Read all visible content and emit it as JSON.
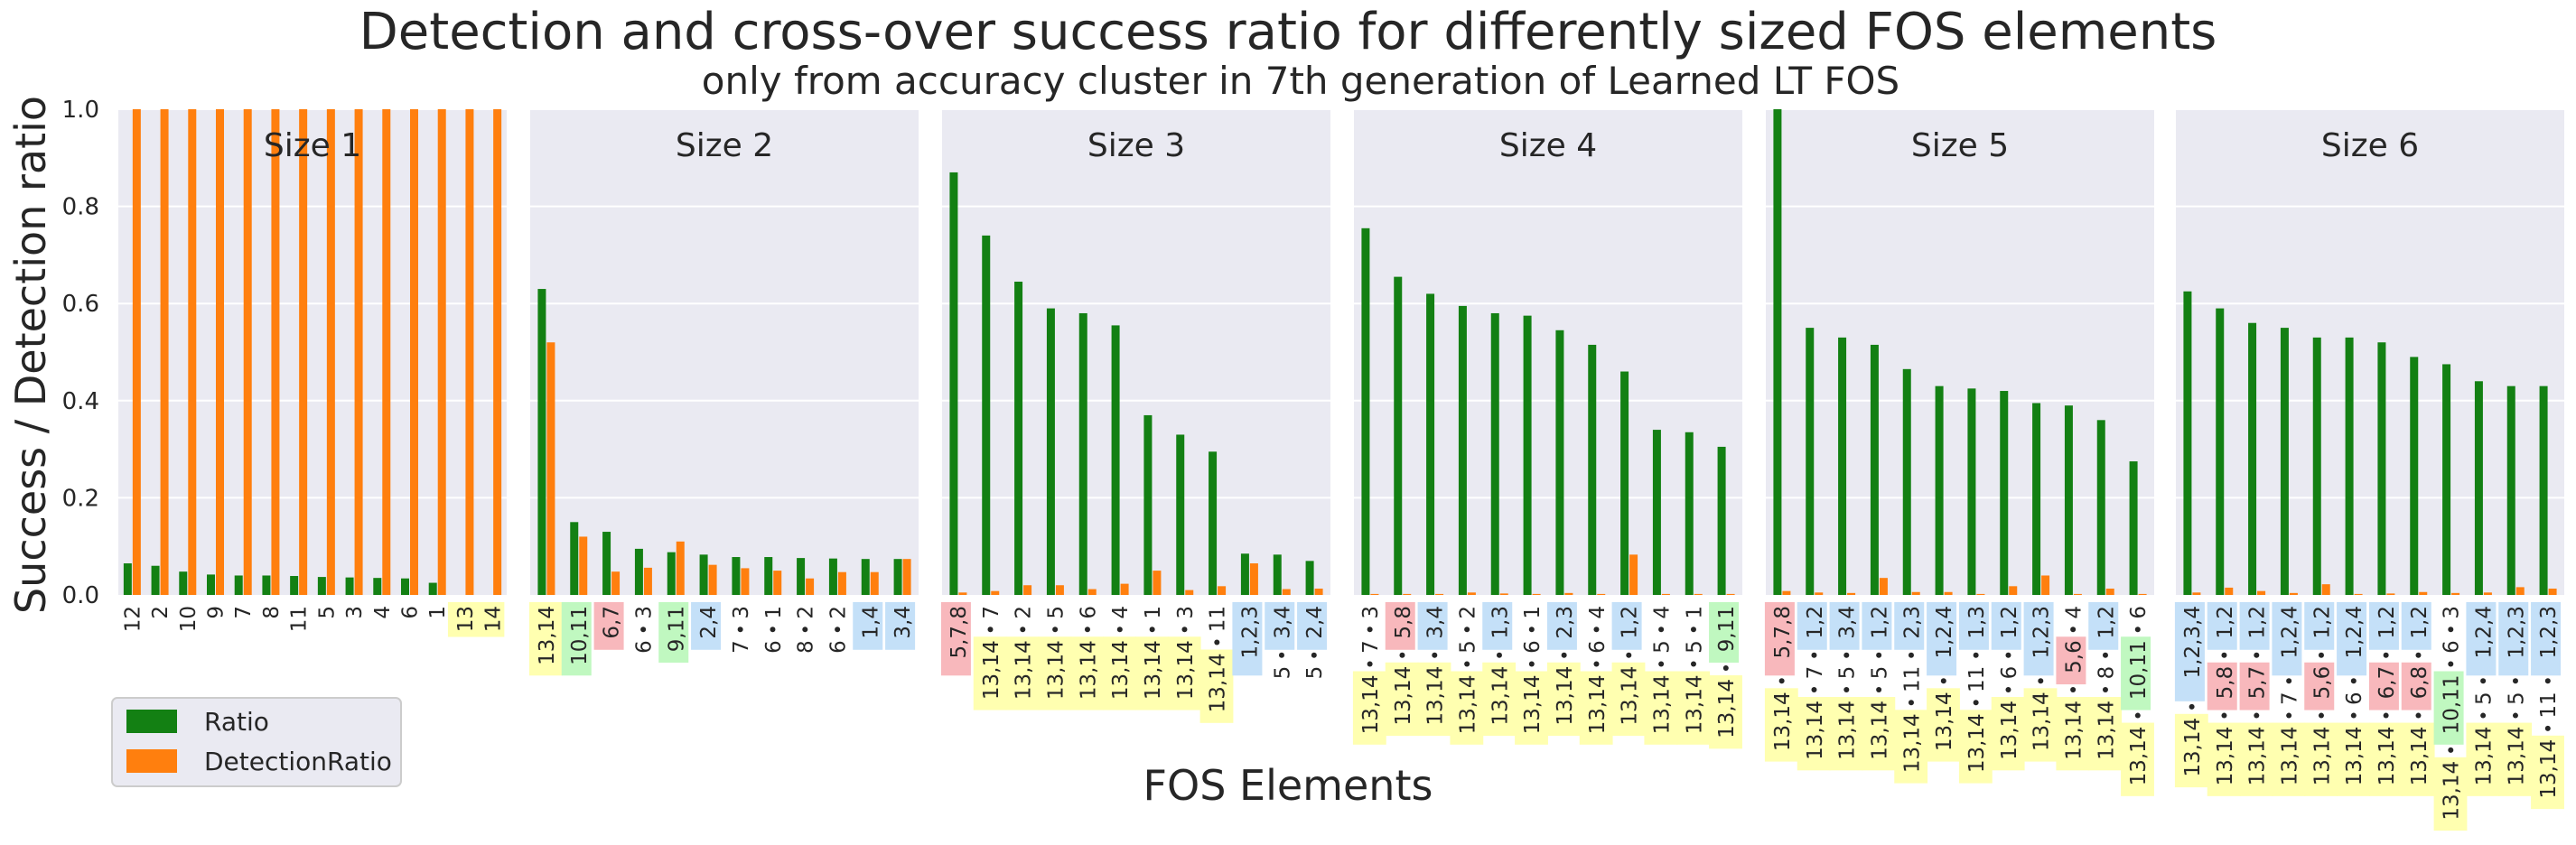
{
  "title": "Detection and cross-over success ratio for differently sized FOS elements",
  "subtitle": "only from accuracy cluster in 7th generation of Learned LT FOS",
  "ylabel": "Success / Detection ratio",
  "xlabel": "FOS Elements",
  "legend": [
    {
      "name": "Ratio",
      "color": "#138013"
    },
    {
      "name": "DetectionRatio",
      "color": "#ff7f0e"
    }
  ],
  "colors": {
    "ratio": "#138013",
    "detection": "#ff7f0e",
    "panel_bg": "#eaeaf2",
    "grid": "#ffffff",
    "hl_yellow": "#ffffb0",
    "hl_green": "#c0f8c0",
    "hl_red": "#f8b8bc",
    "hl_blue": "#c4e0f8"
  },
  "chart_data": {
    "type": "bar",
    "ylim": [
      0,
      1.0
    ],
    "yticks": [
      "0.0",
      "0.2",
      "0.4",
      "0.6",
      "0.8",
      "1.0"
    ],
    "ytick_values": [
      0,
      0.2,
      0.4,
      0.6,
      0.8,
      1.0
    ],
    "grid": true,
    "legend_position": "lower-left",
    "series_names": [
      "Ratio",
      "DetectionRatio"
    ],
    "panels": [
      {
        "title": "Size 1",
        "categories": [
          [
            {
              "t": "12"
            }
          ],
          [
            {
              "t": "2"
            }
          ],
          [
            {
              "t": "10"
            }
          ],
          [
            {
              "t": "9"
            }
          ],
          [
            {
              "t": "7"
            }
          ],
          [
            {
              "t": "8"
            }
          ],
          [
            {
              "t": "11"
            }
          ],
          [
            {
              "t": "5"
            }
          ],
          [
            {
              "t": "3"
            }
          ],
          [
            {
              "t": "4"
            }
          ],
          [
            {
              "t": "6"
            }
          ],
          [
            {
              "t": "1"
            }
          ],
          [
            {
              "t": "13",
              "h": "yellow"
            }
          ],
          [
            {
              "t": "14",
              "h": "yellow"
            }
          ]
        ],
        "ratio": [
          0.065,
          0.06,
          0.048,
          0.042,
          0.04,
          0.04,
          0.039,
          0.037,
          0.036,
          0.035,
          0.034,
          0.025,
          0.0,
          0.0
        ],
        "detection": [
          1.0,
          1.0,
          1.0,
          1.0,
          1.0,
          1.0,
          1.0,
          1.0,
          1.0,
          1.0,
          1.0,
          1.0,
          1.0,
          1.0
        ]
      },
      {
        "title": "Size 2",
        "categories": [
          [
            {
              "t": "13,14",
              "h": "yellow"
            }
          ],
          [
            {
              "t": "10,11",
              "h": "green"
            }
          ],
          [
            {
              "t": "6,7",
              "h": "red"
            }
          ],
          [
            {
              "t": "3"
            },
            {
              "t": "6"
            }
          ],
          [
            {
              "t": "9,11",
              "h": "green"
            }
          ],
          [
            {
              "t": "2,4",
              "h": "blue"
            }
          ],
          [
            {
              "t": "3"
            },
            {
              "t": "7"
            }
          ],
          [
            {
              "t": "1"
            },
            {
              "t": "6"
            }
          ],
          [
            {
              "t": "2"
            },
            {
              "t": "8"
            }
          ],
          [
            {
              "t": "2"
            },
            {
              "t": "6"
            }
          ],
          [
            {
              "t": "1,4",
              "h": "blue"
            }
          ],
          [
            {
              "t": "3,4",
              "h": "blue"
            }
          ]
        ],
        "ratio": [
          0.63,
          0.15,
          0.13,
          0.095,
          0.088,
          0.083,
          0.078,
          0.078,
          0.076,
          0.075,
          0.074,
          0.074
        ],
        "detection": [
          0.52,
          0.12,
          0.048,
          0.056,
          0.11,
          0.062,
          0.055,
          0.05,
          0.034,
          0.047,
          0.047,
          0.074
        ]
      },
      {
        "title": "Size 3",
        "categories": [
          [
            {
              "t": "5,7,8",
              "h": "red"
            }
          ],
          [
            {
              "t": "7"
            },
            {
              "t": "13,14",
              "h": "yellow"
            }
          ],
          [
            {
              "t": "2"
            },
            {
              "t": "13,14",
              "h": "yellow"
            }
          ],
          [
            {
              "t": "5"
            },
            {
              "t": "13,14",
              "h": "yellow"
            }
          ],
          [
            {
              "t": "6"
            },
            {
              "t": "13,14",
              "h": "yellow"
            }
          ],
          [
            {
              "t": "4"
            },
            {
              "t": "13,14",
              "h": "yellow"
            }
          ],
          [
            {
              "t": "1"
            },
            {
              "t": "13,14",
              "h": "yellow"
            }
          ],
          [
            {
              "t": "3"
            },
            {
              "t": "13,14",
              "h": "yellow"
            }
          ],
          [
            {
              "t": "11"
            },
            {
              "t": "13,14",
              "h": "yellow"
            }
          ],
          [
            {
              "t": "1,2,3",
              "h": "blue"
            }
          ],
          [
            {
              "t": "3,4",
              "h": "blue"
            },
            {
              "t": "5"
            }
          ],
          [
            {
              "t": "2,4",
              "h": "blue"
            },
            {
              "t": "5"
            }
          ]
        ],
        "ratio": [
          0.87,
          0.74,
          0.645,
          0.59,
          0.58,
          0.555,
          0.37,
          0.33,
          0.295,
          0.085,
          0.083,
          0.07
        ],
        "detection": [
          0.005,
          0.008,
          0.02,
          0.02,
          0.012,
          0.023,
          0.05,
          0.01,
          0.018,
          0.065,
          0.012,
          0.013
        ]
      },
      {
        "title": "Size 4",
        "categories": [
          [
            {
              "t": "3"
            },
            {
              "t": "7"
            },
            {
              "t": "13,14",
              "h": "yellow"
            }
          ],
          [
            {
              "t": "5,8",
              "h": "red"
            },
            {
              "t": "13,14",
              "h": "yellow"
            }
          ],
          [
            {
              "t": "3,4",
              "h": "blue"
            },
            {
              "t": "13,14",
              "h": "yellow"
            }
          ],
          [
            {
              "t": "2"
            },
            {
              "t": "5"
            },
            {
              "t": "13,14",
              "h": "yellow"
            }
          ],
          [
            {
              "t": "1,3",
              "h": "blue"
            },
            {
              "t": "13,14",
              "h": "yellow"
            }
          ],
          [
            {
              "t": "1"
            },
            {
              "t": "6"
            },
            {
              "t": "13,14",
              "h": "yellow"
            }
          ],
          [
            {
              "t": "2,3",
              "h": "blue"
            },
            {
              "t": "13,14",
              "h": "yellow"
            }
          ],
          [
            {
              "t": "4"
            },
            {
              "t": "6"
            },
            {
              "t": "13,14",
              "h": "yellow"
            }
          ],
          [
            {
              "t": "1,2",
              "h": "blue"
            },
            {
              "t": "13,14",
              "h": "yellow"
            }
          ],
          [
            {
              "t": "4"
            },
            {
              "t": "5"
            },
            {
              "t": "13,14",
              "h": "yellow"
            }
          ],
          [
            {
              "t": "1"
            },
            {
              "t": "5"
            },
            {
              "t": "13,14",
              "h": "yellow"
            }
          ],
          [
            {
              "t": "9,11",
              "h": "green"
            },
            {
              "t": "13,14",
              "h": "yellow"
            }
          ]
        ],
        "ratio": [
          0.755,
          0.655,
          0.62,
          0.595,
          0.58,
          0.575,
          0.545,
          0.515,
          0.46,
          0.34,
          0.335,
          0.305
        ],
        "detection": [
          0.002,
          0.002,
          0.002,
          0.005,
          0.003,
          0.002,
          0.004,
          0.002,
          0.083,
          0.002,
          0.002,
          0.002
        ]
      },
      {
        "title": "Size 5",
        "categories": [
          [
            {
              "t": "5,7,8",
              "h": "red"
            },
            {
              "t": "13,14",
              "h": "yellow"
            }
          ],
          [
            {
              "t": "1,2",
              "h": "blue"
            },
            {
              "t": "7"
            },
            {
              "t": "13,14",
              "h": "yellow"
            }
          ],
          [
            {
              "t": "3,4",
              "h": "blue"
            },
            {
              "t": "5"
            },
            {
              "t": "13,14",
              "h": "yellow"
            }
          ],
          [
            {
              "t": "1,2",
              "h": "blue"
            },
            {
              "t": "5"
            },
            {
              "t": "13,14",
              "h": "yellow"
            }
          ],
          [
            {
              "t": "2,3",
              "h": "blue"
            },
            {
              "t": "11"
            },
            {
              "t": "13,14",
              "h": "yellow"
            }
          ],
          [
            {
              "t": "1,2,4",
              "h": "blue"
            },
            {
              "t": "13,14",
              "h": "yellow"
            }
          ],
          [
            {
              "t": "1,3",
              "h": "blue"
            },
            {
              "t": "11"
            },
            {
              "t": "13,14",
              "h": "yellow"
            }
          ],
          [
            {
              "t": "1,2",
              "h": "blue"
            },
            {
              "t": "6"
            },
            {
              "t": "13,14",
              "h": "yellow"
            }
          ],
          [
            {
              "t": "1,2,3",
              "h": "blue"
            },
            {
              "t": "13,14",
              "h": "yellow"
            }
          ],
          [
            {
              "t": "4"
            },
            {
              "t": "5,6",
              "h": "red"
            },
            {
              "t": "13,14",
              "h": "yellow"
            }
          ],
          [
            {
              "t": "1,2",
              "h": "blue"
            },
            {
              "t": "8"
            },
            {
              "t": "13,14",
              "h": "yellow"
            }
          ],
          [
            {
              "t": "6"
            },
            {
              "t": "10,11",
              "h": "green"
            },
            {
              "t": "13,14",
              "h": "yellow"
            }
          ]
        ],
        "ratio": [
          1.0,
          0.55,
          0.53,
          0.515,
          0.465,
          0.43,
          0.425,
          0.42,
          0.395,
          0.39,
          0.36,
          0.275
        ],
        "detection": [
          0.008,
          0.005,
          0.004,
          0.035,
          0.006,
          0.006,
          0.002,
          0.018,
          0.04,
          0.002,
          0.013,
          0.002
        ]
      },
      {
        "title": "Size 6",
        "categories": [
          [
            {
              "t": "1,2,3,4",
              "h": "blue"
            },
            {
              "t": "13,14",
              "h": "yellow"
            }
          ],
          [
            {
              "t": "1,2",
              "h": "blue"
            },
            {
              "t": "5,8",
              "h": "red"
            },
            {
              "t": "13,14",
              "h": "yellow"
            }
          ],
          [
            {
              "t": "1,2",
              "h": "blue"
            },
            {
              "t": "5,7",
              "h": "red"
            },
            {
              "t": "13,14",
              "h": "yellow"
            }
          ],
          [
            {
              "t": "1,2,4",
              "h": "blue"
            },
            {
              "t": "7"
            },
            {
              "t": "13,14",
              "h": "yellow"
            }
          ],
          [
            {
              "t": "1,2",
              "h": "blue"
            },
            {
              "t": "5,6",
              "h": "red"
            },
            {
              "t": "13,14",
              "h": "yellow"
            }
          ],
          [
            {
              "t": "1,2,4",
              "h": "blue"
            },
            {
              "t": "6"
            },
            {
              "t": "13,14",
              "h": "yellow"
            }
          ],
          [
            {
              "t": "1,2",
              "h": "blue"
            },
            {
              "t": "6,7",
              "h": "red"
            },
            {
              "t": "13,14",
              "h": "yellow"
            }
          ],
          [
            {
              "t": "1,2",
              "h": "blue"
            },
            {
              "t": "6,8",
              "h": "red"
            },
            {
              "t": "13,14",
              "h": "yellow"
            }
          ],
          [
            {
              "t": "3"
            },
            {
              "t": "6"
            },
            {
              "t": "10,11",
              "h": "green"
            },
            {
              "t": "13,14",
              "h": "yellow"
            }
          ],
          [
            {
              "t": "1,2,4",
              "h": "blue"
            },
            {
              "t": "5"
            },
            {
              "t": "13,14",
              "h": "yellow"
            }
          ],
          [
            {
              "t": "1,2,3",
              "h": "blue"
            },
            {
              "t": "5"
            },
            {
              "t": "13,14",
              "h": "yellow"
            }
          ],
          [
            {
              "t": "1,2,3",
              "h": "blue"
            },
            {
              "t": "11"
            },
            {
              "t": "13,14",
              "h": "yellow"
            }
          ]
        ],
        "ratio": [
          0.625,
          0.59,
          0.56,
          0.55,
          0.53,
          0.53,
          0.52,
          0.49,
          0.475,
          0.44,
          0.43,
          0.43
        ],
        "detection": [
          0.005,
          0.015,
          0.008,
          0.004,
          0.022,
          0.002,
          0.003,
          0.006,
          0.004,
          0.005,
          0.016,
          0.013
        ]
      }
    ]
  }
}
